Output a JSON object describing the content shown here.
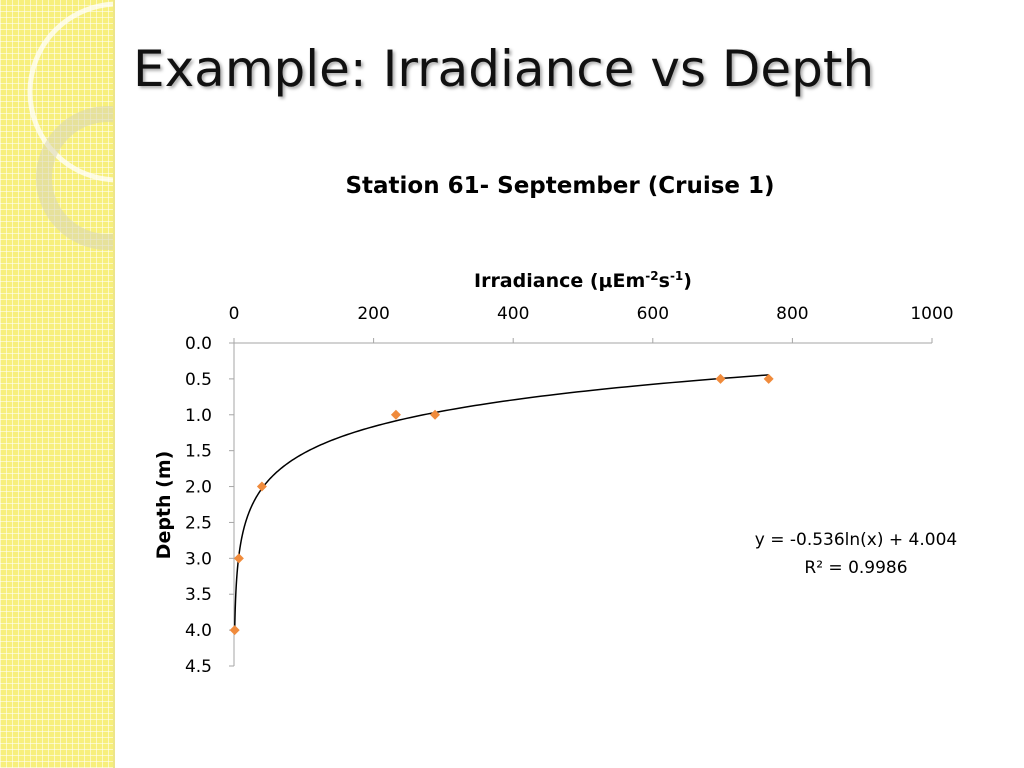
{
  "slide": {
    "title": "Example: Irradiance vs Depth"
  },
  "colors": {
    "side_strip": "#f7ef7c",
    "marker": "#f08b3c",
    "trendline": "#000000",
    "axis": "#a6a6a6"
  },
  "chart_data": {
    "type": "scatter",
    "title": "Station 61- September (Cruise 1)",
    "xlabel": {
      "main": "Irradiance (μEm",
      "sup1": "-2",
      "mid": "s",
      "sup2": "-1",
      "end": ")"
    },
    "ylabel": "Depth (m)",
    "x_axis_position": "top",
    "y_axis_reversed": true,
    "xlim": [
      0,
      1000
    ],
    "ylim": [
      0,
      4.5
    ],
    "xticks": [
      "0",
      "200",
      "400",
      "600",
      "800",
      "1000"
    ],
    "xtick_values": [
      0,
      200,
      400,
      600,
      800,
      1000
    ],
    "yticks": [
      "0.0",
      "0.5",
      "1.0",
      "1.5",
      "2.0",
      "2.5",
      "3.0",
      "3.5",
      "4.0",
      "4.5"
    ],
    "ytick_values": [
      0,
      0.5,
      1.0,
      1.5,
      2.0,
      2.5,
      3.0,
      3.5,
      4.0,
      4.5
    ],
    "series": [
      {
        "points": [
          {
            "x": 766,
            "y": 0.5
          },
          {
            "x": 697,
            "y": 0.5
          },
          {
            "x": 288,
            "y": 1.0
          },
          {
            "x": 232,
            "y": 1.0
          },
          {
            "x": 40,
            "y": 2.0
          },
          {
            "x": 7,
            "y": 3.0
          },
          {
            "x": 1,
            "y": 4.0
          }
        ]
      }
    ],
    "trendline": {
      "type": "logarithmic",
      "a": -0.536,
      "b": 4.004,
      "equation": "y = -0.536ln(x) + 4.004",
      "r_squared": "R² = 0.9986"
    },
    "grid": false,
    "legend": "none"
  }
}
